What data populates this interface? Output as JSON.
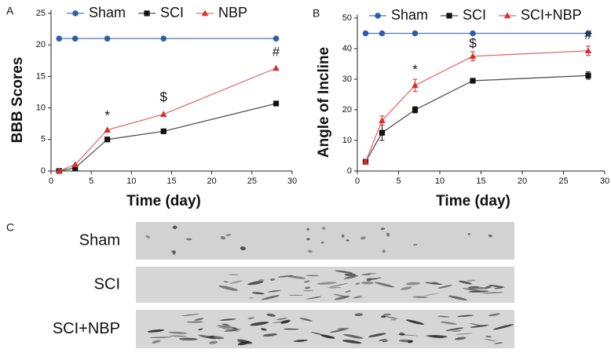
{
  "chart_data": [
    {
      "type": "line",
      "panel_label": "A",
      "xlabel": "Time (day)",
      "ylabel": "BBB Scores",
      "x": [
        1,
        3,
        7,
        14,
        28
      ],
      "xlim": [
        0,
        30
      ],
      "xticks": [
        0,
        5,
        10,
        15,
        20,
        25,
        30
      ],
      "ylim": [
        0,
        25
      ],
      "yticks": [
        0,
        5,
        10,
        15,
        20,
        25
      ],
      "legend": "top",
      "series": [
        {
          "name": "Sham",
          "color": "#2d5ea8",
          "line_color": "#4a78bb",
          "marker": "circle",
          "values": [
            21,
            21,
            21,
            21,
            21
          ]
        },
        {
          "name": "SCI",
          "color": "#111111",
          "line_color": "#555555",
          "marker": "square",
          "values": [
            0,
            0.5,
            5,
            6.3,
            10.7
          ]
        },
        {
          "name": "NBP",
          "color": "#d7302c",
          "line_color": "#e0706c",
          "marker": "triangle",
          "values": [
            0,
            1,
            6.5,
            9,
            16.3
          ]
        }
      ],
      "annotations": [
        {
          "text": "*",
          "x": 7,
          "y": 8.7
        },
        {
          "text": "$",
          "x": 14,
          "y": 11.6
        },
        {
          "text": "#",
          "x": 28,
          "y": 18.8
        }
      ]
    },
    {
      "type": "line",
      "panel_label": "B",
      "xlabel": "Time (day)",
      "ylabel": "Angle of Incline",
      "x": [
        1,
        3,
        7,
        14,
        28
      ],
      "xlim": [
        0,
        30
      ],
      "xticks": [
        0,
        5,
        10,
        15,
        20,
        25,
        30
      ],
      "ylim": [
        0,
        50
      ],
      "yticks": [
        0,
        10,
        20,
        30,
        40,
        50
      ],
      "legend": "top",
      "series": [
        {
          "name": "Sham",
          "color": "#2d5ea8",
          "line_color": "#4a78bb",
          "marker": "circle",
          "values": [
            45,
            45,
            45,
            45,
            45
          ]
        },
        {
          "name": "SCI",
          "color": "#111111",
          "line_color": "#555555",
          "marker": "square",
          "values": [
            3,
            12.5,
            20,
            29.5,
            31.2
          ],
          "errors": [
            0.5,
            2.5,
            1,
            0.5,
            1.2
          ]
        },
        {
          "name": "SCI+NBP",
          "color": "#d7302c",
          "line_color": "#e0706c",
          "marker": "triangle",
          "values": [
            3,
            16.5,
            28,
            37.5,
            39.3
          ],
          "errors": [
            0.5,
            1.5,
            2,
            1.5,
            1.5
          ]
        }
      ],
      "annotations": [
        {
          "text": "*",
          "x": 7,
          "y": 33
        },
        {
          "text": "$",
          "x": 14,
          "y": 41.5
        },
        {
          "text": "#",
          "x": 28,
          "y": 44.2
        }
      ]
    }
  ],
  "footprints": {
    "panel_label": "C",
    "rows": [
      "Sham",
      "SCI",
      "SCI+NBP"
    ]
  }
}
